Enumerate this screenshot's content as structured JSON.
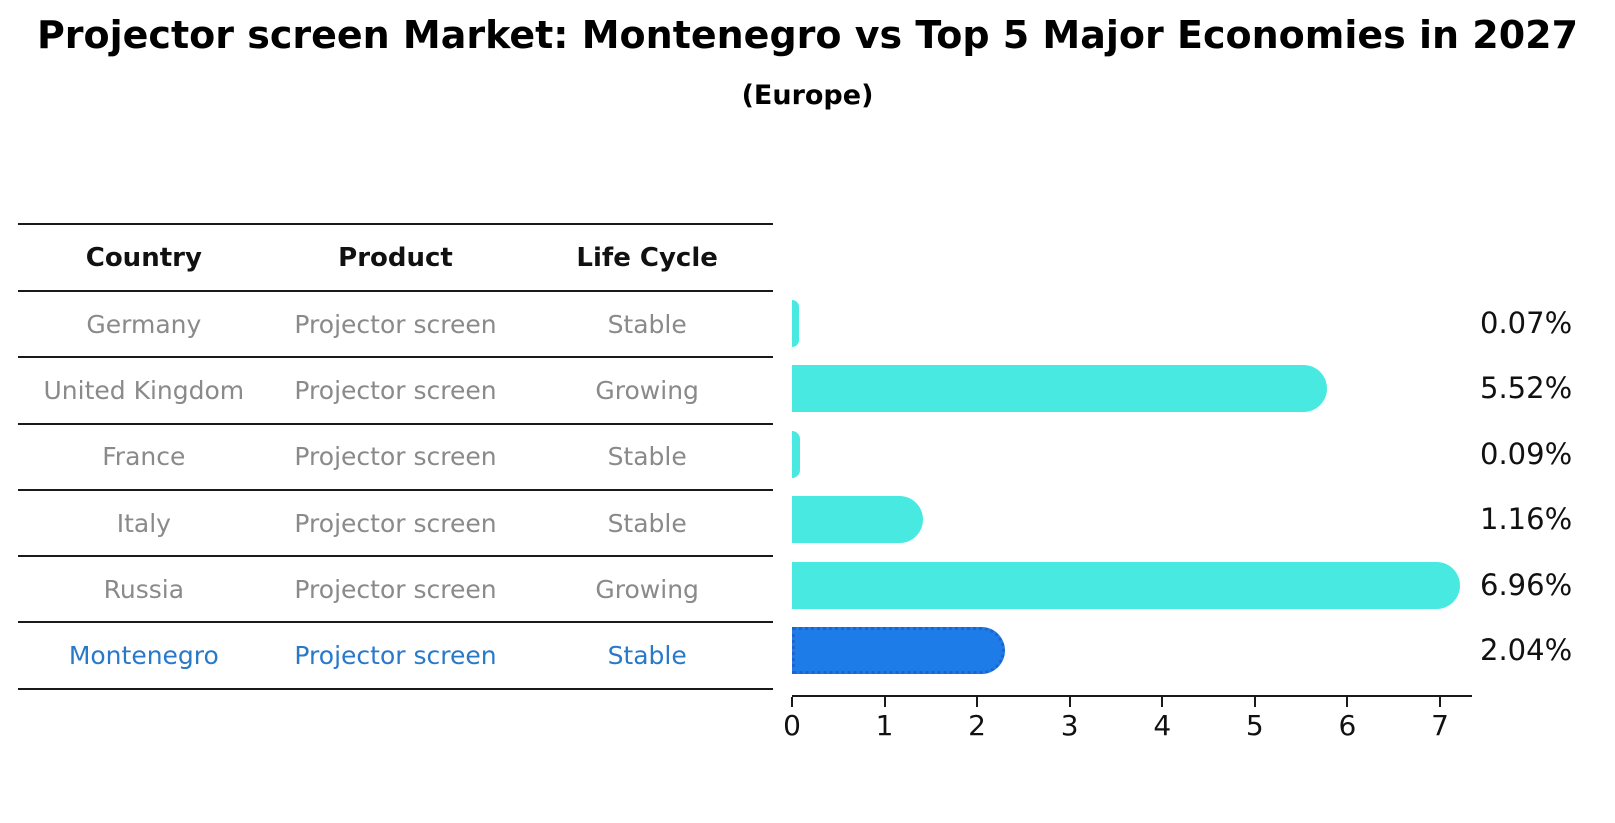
{
  "title": "Projector screen Market: Montenegro vs Top 5 Major Economies in 2027",
  "subtitle": "(Europe)",
  "colors": {
    "bar_default": "#47e9e0",
    "bar_highlight": "#1e7ce8",
    "bar_highlight_border": "#1f63cc",
    "highlight_text": "#2979c9",
    "table_text": "#8a8a8a",
    "axis_text": "#111111"
  },
  "table": {
    "columns": [
      "Country",
      "Product",
      "Life Cycle"
    ],
    "rows": [
      {
        "country": "Germany",
        "product": "Projector screen",
        "life_cycle": "Stable",
        "highlight": false
      },
      {
        "country": "United Kingdom",
        "product": "Projector screen",
        "life_cycle": "Growing",
        "highlight": false
      },
      {
        "country": "France",
        "product": "Projector screen",
        "life_cycle": "Stable",
        "highlight": false
      },
      {
        "country": "Italy",
        "product": "Projector screen",
        "life_cycle": "Stable",
        "highlight": false
      },
      {
        "country": "Russia",
        "product": "Projector screen",
        "life_cycle": "Growing",
        "highlight": false
      },
      {
        "country": "Montenegro",
        "product": "Projector screen",
        "life_cycle": "Stable",
        "highlight": true
      }
    ]
  },
  "chart_data": {
    "type": "bar",
    "orientation": "horizontal",
    "title": "Projector screen Market: Montenegro vs Top 5 Major Economies in 2027 (Europe)",
    "categories": [
      "Germany",
      "United Kingdom",
      "France",
      "Italy",
      "Russia",
      "Montenegro"
    ],
    "values": [
      0.07,
      5.52,
      0.09,
      1.16,
      6.96,
      2.04
    ],
    "value_labels": [
      "0.07%",
      "5.52%",
      "0.09%",
      "1.16%",
      "6.96%",
      "2.04%"
    ],
    "highlight_category": "Montenegro",
    "xlabel": "",
    "ylabel": "",
    "xlim": [
      0,
      7.35
    ],
    "x_ticks": [
      0,
      1,
      2,
      3,
      4,
      5,
      6,
      7
    ],
    "grid": false,
    "legend": false
  }
}
